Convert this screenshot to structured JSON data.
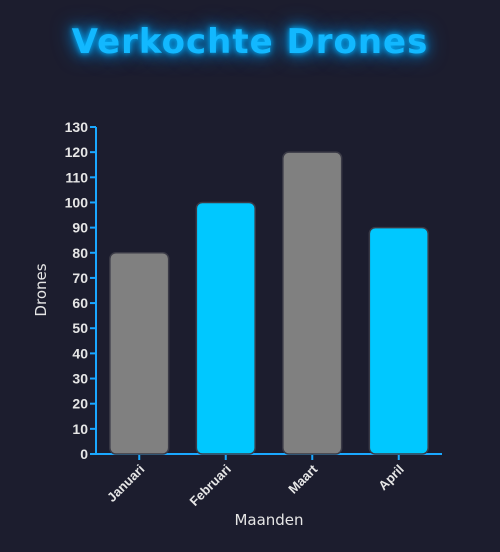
{
  "chart_data": {
    "type": "bar",
    "title": "Verkochte Drones",
    "xlabel": "Maanden",
    "ylabel": "Drones",
    "categories": [
      "Januari",
      "Februari",
      "Maart",
      "April"
    ],
    "values": [
      80,
      100,
      120,
      90
    ],
    "ylim": [
      0,
      130
    ],
    "yticks": [
      0,
      10,
      20,
      30,
      40,
      50,
      60,
      70,
      80,
      90,
      100,
      110,
      120,
      130
    ],
    "bar_colors": [
      "#808080",
      "#00c8ff",
      "#808080",
      "#00c8ff"
    ],
    "axis_color": "#1aa8ff",
    "grid": false,
    "legend": "none"
  },
  "colors": {
    "background": "#1c1d2e",
    "title": "#12b8ff",
    "text": "#e6e6e6"
  }
}
